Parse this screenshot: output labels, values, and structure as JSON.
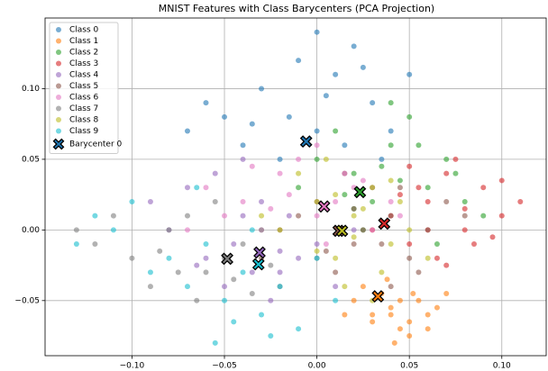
{
  "chart_data": {
    "type": "scatter",
    "title": "MNIST Features with Class Barycenters (PCA Projection)",
    "xlim": [
      -0.147,
      0.124
    ],
    "ylim": [
      -0.089,
      0.15
    ],
    "xticks": [
      {
        "value": -0.1,
        "label": "−0.10"
      },
      {
        "value": -0.05,
        "label": "−0.05"
      },
      {
        "value": 0,
        "label": "0.00"
      },
      {
        "value": 0.05,
        "label": "0.05"
      },
      {
        "value": 0.1,
        "label": "0.10"
      }
    ],
    "yticks": [
      {
        "value": -0.05,
        "label": "−0.05"
      },
      {
        "value": 0,
        "label": "0.00"
      },
      {
        "value": 0.05,
        "label": "0.05"
      },
      {
        "value": 0.1,
        "label": "0.10"
      }
    ],
    "grid": true,
    "legend": "upper left",
    "series": [
      {
        "name": "Class 0",
        "color": "#1f77b4",
        "x": [
          -0.05,
          -0.03,
          -0.01,
          0.01,
          0.03,
          -0.04,
          0.0,
          0.02,
          -0.02,
          0.04,
          -0.06,
          0.05,
          -0.015,
          0.005,
          0.025,
          -0.035,
          0.015,
          -0.07,
          0.035,
          0.0
        ],
        "y": [
          0.08,
          0.1,
          0.12,
          0.11,
          0.09,
          0.06,
          0.07,
          0.13,
          0.05,
          0.07,
          0.09,
          0.11,
          0.08,
          0.095,
          0.115,
          0.075,
          0.06,
          0.07,
          0.05,
          0.14
        ]
      },
      {
        "name": "Class 1",
        "color": "#ff7f0e",
        "x": [
          0.02,
          0.03,
          0.04,
          0.05,
          0.06,
          0.035,
          0.045,
          0.055,
          0.025,
          0.04,
          0.05,
          0.065,
          0.03,
          0.045,
          0.06,
          0.038,
          0.052,
          0.042,
          0.07,
          0.015
        ],
        "y": [
          -0.05,
          -0.06,
          -0.055,
          -0.065,
          -0.06,
          -0.045,
          -0.07,
          -0.05,
          -0.04,
          -0.06,
          -0.075,
          -0.055,
          -0.065,
          -0.05,
          -0.07,
          -0.035,
          -0.045,
          -0.08,
          -0.045,
          -0.06
        ]
      },
      {
        "name": "Class 2",
        "color": "#2ca02c",
        "x": [
          0.0,
          0.02,
          0.04,
          0.06,
          0.08,
          0.03,
          0.05,
          0.01,
          0.07,
          0.025,
          0.045,
          0.09,
          -0.01,
          0.035,
          0.055,
          0.015,
          0.065,
          0.04,
          0.075,
          0.02
        ],
        "y": [
          0.05,
          0.04,
          0.06,
          0.03,
          0.02,
          0.02,
          0.08,
          0.07,
          0.05,
          0.0,
          0.035,
          0.01,
          0.03,
          0.045,
          0.06,
          0.025,
          -0.01,
          0.09,
          0.04,
          0.015
        ]
      },
      {
        "name": "Class 3",
        "color": "#d62728",
        "x": [
          0.04,
          0.06,
          0.08,
          0.1,
          0.05,
          0.07,
          0.09,
          0.11,
          0.03,
          0.065,
          0.085,
          0.055,
          0.075,
          0.095,
          0.045,
          0.06,
          0.08,
          0.07,
          0.1,
          0.05
        ],
        "y": [
          0.01,
          0.02,
          0.0,
          0.01,
          -0.01,
          0.04,
          0.03,
          0.02,
          0.0,
          -0.02,
          -0.01,
          0.03,
          0.05,
          -0.005,
          0.025,
          0.0,
          0.015,
          -0.025,
          0.035,
          0.045
        ]
      },
      {
        "name": "Class 4",
        "color": "#9467bd",
        "x": [
          -0.08,
          -0.06,
          -0.04,
          -0.02,
          0.0,
          -0.05,
          -0.03,
          -0.01,
          -0.07,
          0.02,
          -0.045,
          -0.025,
          -0.055,
          -0.015,
          -0.035,
          -0.09,
          0.01,
          -0.04,
          -0.02,
          -0.065
        ],
        "y": [
          0.0,
          -0.02,
          0.01,
          -0.03,
          -0.01,
          -0.04,
          0.02,
          -0.02,
          0.03,
          0.0,
          -0.01,
          -0.05,
          0.04,
          0.01,
          -0.03,
          0.02,
          -0.04,
          0.05,
          -0.015,
          -0.025
        ]
      },
      {
        "name": "Class 5",
        "color": "#8c564b",
        "x": [
          -0.02,
          0.0,
          0.02,
          0.04,
          0.06,
          0.01,
          0.03,
          0.05,
          -0.01,
          0.07,
          0.015,
          0.035,
          0.025,
          0.045,
          -0.03,
          0.055,
          0.005,
          0.02,
          0.04,
          0.08
        ],
        "y": [
          0.0,
          0.02,
          -0.01,
          0.01,
          0.0,
          -0.03,
          0.03,
          -0.02,
          0.01,
          0.02,
          0.04,
          -0.01,
          0.0,
          0.03,
          -0.02,
          -0.03,
          -0.015,
          0.015,
          -0.04,
          0.01
        ]
      },
      {
        "name": "Class 6",
        "color": "#e377c2",
        "x": [
          -0.06,
          -0.04,
          -0.02,
          0.0,
          0.02,
          0.04,
          -0.03,
          -0.01,
          0.01,
          0.03,
          -0.05,
          0.015,
          -0.015,
          0.005,
          -0.025,
          0.025,
          -0.07,
          0.045,
          -0.035,
          0.0
        ],
        "y": [
          0.03,
          0.02,
          0.04,
          0.01,
          0.03,
          0.02,
          0.0,
          0.05,
          0.02,
          0.0,
          0.01,
          0.04,
          0.025,
          -0.01,
          0.015,
          0.035,
          0.0,
          0.01,
          0.045,
          0.06
        ]
      },
      {
        "name": "Class 7",
        "color": "#7f7f7f",
        "x": [
          -0.12,
          -0.1,
          -0.08,
          -0.06,
          -0.04,
          -0.02,
          -0.09,
          -0.07,
          -0.05,
          -0.03,
          -0.11,
          -0.065,
          -0.045,
          -0.085,
          -0.025,
          -0.055,
          -0.075,
          -0.035,
          0.0,
          -0.13
        ],
        "y": [
          -0.01,
          -0.02,
          0.0,
          -0.03,
          -0.01,
          -0.04,
          -0.04,
          0.01,
          -0.02,
          0.0,
          0.01,
          -0.05,
          -0.035,
          -0.015,
          -0.025,
          0.02,
          -0.03,
          -0.045,
          -0.02,
          0.0
        ]
      },
      {
        "name": "Class 8",
        "color": "#bcbd22",
        "x": [
          -0.02,
          0.0,
          0.02,
          0.04,
          0.01,
          0.03,
          0.05,
          -0.01,
          0.015,
          0.025,
          0.035,
          0.005,
          0.045,
          0.02,
          0.0,
          0.03,
          0.01,
          0.04,
          -0.03,
          0.06
        ],
        "y": [
          0.0,
          0.02,
          0.01,
          -0.01,
          -0.02,
          0.03,
          0.0,
          0.04,
          -0.04,
          0.015,
          -0.03,
          0.05,
          0.02,
          -0.005,
          -0.015,
          -0.05,
          0.025,
          0.035,
          0.01,
          -0.02
        ]
      },
      {
        "name": "Class 9",
        "color": "#17becf",
        "x": [
          -0.13,
          -0.11,
          -0.09,
          -0.07,
          -0.05,
          -0.03,
          -0.01,
          0.01,
          -0.1,
          -0.08,
          -0.06,
          -0.04,
          -0.02,
          -0.12,
          0.0,
          -0.045,
          -0.025,
          -0.065,
          -0.035,
          -0.055
        ],
        "y": [
          -0.01,
          0.0,
          -0.03,
          -0.04,
          -0.05,
          -0.06,
          -0.07,
          -0.05,
          0.02,
          -0.02,
          -0.01,
          -0.03,
          -0.04,
          0.01,
          -0.02,
          -0.065,
          -0.075,
          0.03,
          0.0,
          -0.08
        ]
      }
    ],
    "barycenters": {
      "name": "Barycenter 0",
      "x": [
        -0.0058,
        0.033,
        0.0233,
        0.0364,
        -0.031,
        0.0117,
        0.0039,
        -0.0485,
        0.0136,
        -0.0316
      ],
      "y": [
        0.0626,
        -0.047,
        0.0268,
        0.0045,
        -0.016,
        -0.0006,
        0.0166,
        -0.0204,
        -0.0006,
        -0.0243
      ]
    }
  }
}
